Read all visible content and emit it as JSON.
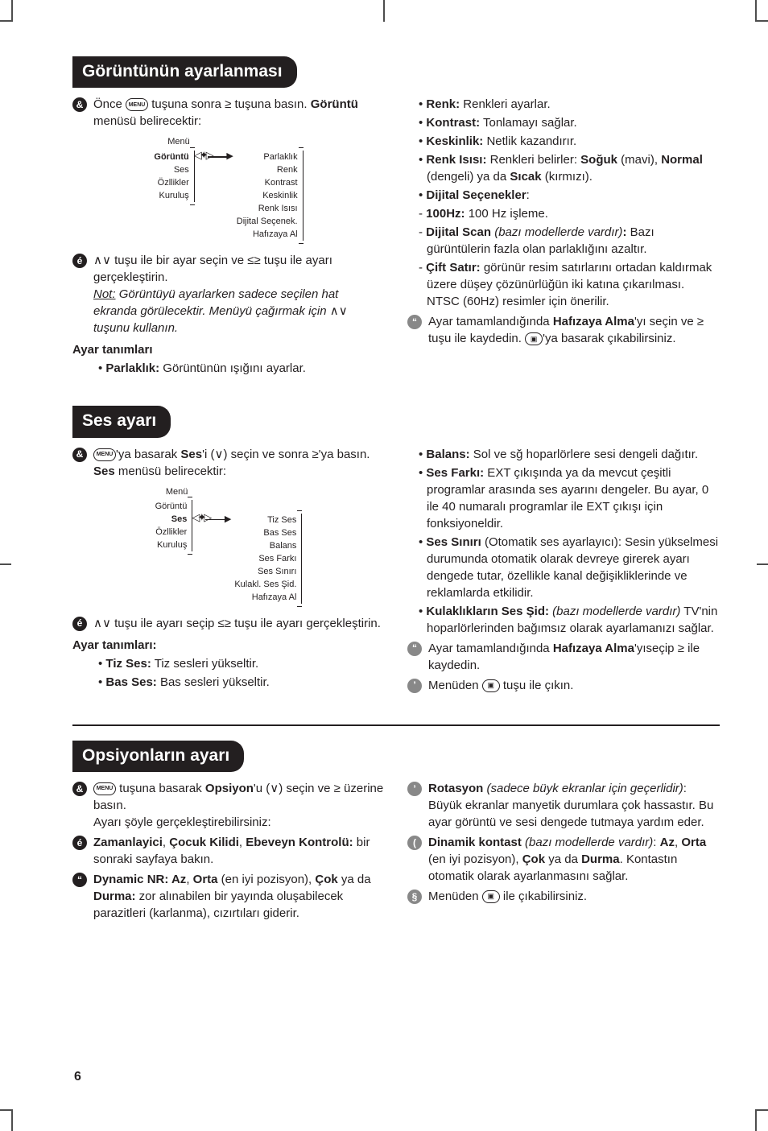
{
  "page_number": "6",
  "colors": {
    "ink": "#231f20",
    "grey": "#888888",
    "white": "#ffffff"
  },
  "typography": {
    "body_fontsize": 15,
    "title_fontsize": 21,
    "diagram_fontsize": 11
  },
  "section1": {
    "title": "Görüntünün ayarlanması",
    "left": {
      "step1": "Önce {MENU} tuşuna sonra {GT} tuşuna basın. {BOLD:Görüntü} menüsü belirecektir:",
      "step2_a": "{UPDN} tuşu ile bir ayar seçin ve {LTGT} tuşu ile ayarı gerçekleştirin.",
      "step2_note": "{UNDERLINE_ITALIC:Not:} {ITALIC:Görüntüyü ayarlarken sadece seçilen hat ekranda görülecektir. Menüyü çağırmak için} {UPDN} {ITALIC:tuşunu kullanın.}",
      "ayar_heading": "Ayar tanımları",
      "bullet1": "{BOLD:Parlaklık:} Görüntünün ışığını ayarlar."
    },
    "diagram": {
      "menu_label": "Menü",
      "left_items": [
        "Görüntü",
        "Ses",
        "Özllikler",
        "Kuruluş"
      ],
      "selected_left": 0,
      "right_items": [
        "Parlaklık",
        "Renk",
        "Kontrast",
        "Keskinlik",
        "Renk Isısı",
        "Dijital Seçenek.",
        "Hafızaya Al"
      ]
    },
    "right": {
      "bullets": [
        "{BOLD:Renk:} Renkleri ayarlar.",
        "{BOLD:Kontrast:} Tonlamayı sağlar.",
        "{BOLD:Keskinlik:} Netlik kazandırır.",
        "{BOLD:Renk Isısı:} Renkleri belirler: {BOLD:Soğuk} (mavi), {BOLD:Normal} (dengeli) ya da {BOLD:Sıcak} (kırmızı).",
        "{BOLD:Dijital Seçenekler}:"
      ],
      "sub_bullets": [
        "{BOLD:100Hz:} 100 Hz işleme.",
        "{BOLD:Dijital Scan} {ITALIC:(bazı modellerde vardır)}{BOLD::} Bazı gürüntülerin fazla olan parlaklığını azaltır.",
        "{BOLD:Çift Satır:} görünür resim satırlarını ortadan kaldırmak üzere düşey çözünürlüğün iki katına çıkarılması. NTSC (60Hz) resimler için önerilir."
      ],
      "step3": "Ayar tamamlandığında {BOLD:Hafızaya Alma}'yı seçin ve {GT} tuşu ile kaydedin. {EXIT}'ya basarak çıkabilirsiniz."
    }
  },
  "section2": {
    "title": "Ses ayarı",
    "left": {
      "step1": "{MENU}'ya basarak {BOLD:Ses}'i ({DN}) seçin ve sonra {GT}'ya basın. {BOLD:Ses} menüsü belirecektir:",
      "step2": "{UPDN} tuşu ile ayarı seçip {LTGT} tuşu ile ayarı gerçekleştirin.",
      "ayar_heading": "Ayar tanımları:",
      "bullets": [
        "{BOLD:Tiz Ses:} Tiz sesleri yükseltir.",
        "{BOLD:Bas Ses:} Bas sesleri yükseltir."
      ]
    },
    "diagram": {
      "menu_label": "Menü",
      "left_items": [
        "Görüntü",
        "Ses",
        "Özllikler",
        "Kuruluş"
      ],
      "selected_left": 1,
      "right_items": [
        "Tiz Ses",
        "Bas Ses",
        "Balans",
        "Ses Farkı",
        "Ses Sınırı",
        "Kulakl. Ses Şid.",
        "Hafızaya Al"
      ]
    },
    "right": {
      "bullets": [
        "{BOLD:Balans:} Sol ve sğ hoparlörlere sesi dengeli dağıtır.",
        "{BOLD:Ses Farkı:} EXT çıkışında ya da mevcut çeşitli programlar arasında ses ayarını dengeler. Bu ayar, 0 ile 40 numaralı programlar ile EXT çıkışı için fonksiyoneldir.",
        "{BOLD:Ses Sınırı} (Otomatik ses ayarlayıcı): Sesin yükselmesi durumunda otomatik olarak devreye girerek ayarı dengede tutar, özellikle kanal değişikliklerinde ve reklamlarda etkilidir.",
        "{BOLD:Kulaklıkların Ses Şid:} {ITALIC:(bazı modellerde vardır)} TV'nin hoparlörlerinden bağımsız olarak ayarlamanızı sağlar."
      ],
      "step3": "Ayar tamamlandığında {BOLD:Hafızaya Alma}'yıseçip {GT} ile kaydedin.",
      "step4": "Menüden {EXIT} tuşu ile çıkın."
    }
  },
  "section3": {
    "title": "Opsiyonların ayarı",
    "left": {
      "step1": "{MENU} tuşuna basarak {BOLD:Opsiyon}'u ({DN}) seçin ve {GT} üzerine basın.",
      "step1_sub": "Ayarı şöyle gerçekleştirebilirsiniz:",
      "step2": "{BOLD:Zamanlayici}, {BOLD:Çocuk Kilidi}, {BOLD:Ebeveyn Kontrolü:} bir sonraki sayfaya bakın.",
      "step3": "{BOLD:Dynamic NR: Az}, {BOLD:Orta} (en iyi pozisyon), {BOLD:Çok} ya da {BOLD:Durma:} zor alınabilen bir yayında oluşabilecek parazitleri (karlanma), cızırtıları giderir."
    },
    "right": {
      "step4": "{BOLD:Rotasyon} {ITALIC:(sadece büyk ekranlar için geçerlidir)}: Büyük ekranlar manyetik durumlara çok hassastır. Bu ayar görüntü ve sesi dengede tutmaya yardım eder.",
      "step5": "{BOLD:Dinamik kontast} {ITALIC:(bazı modellerde vardır)}: {BOLD:Az}, {BOLD:Orta} (en iyi pozisyon), {BOLD:Çok} ya da {BOLD:Durma}. Kontastın otomatik olarak ayarlanmasını sağlar.",
      "step6": "Menüden {EXIT} ile çıkabilirsiniz."
    }
  }
}
